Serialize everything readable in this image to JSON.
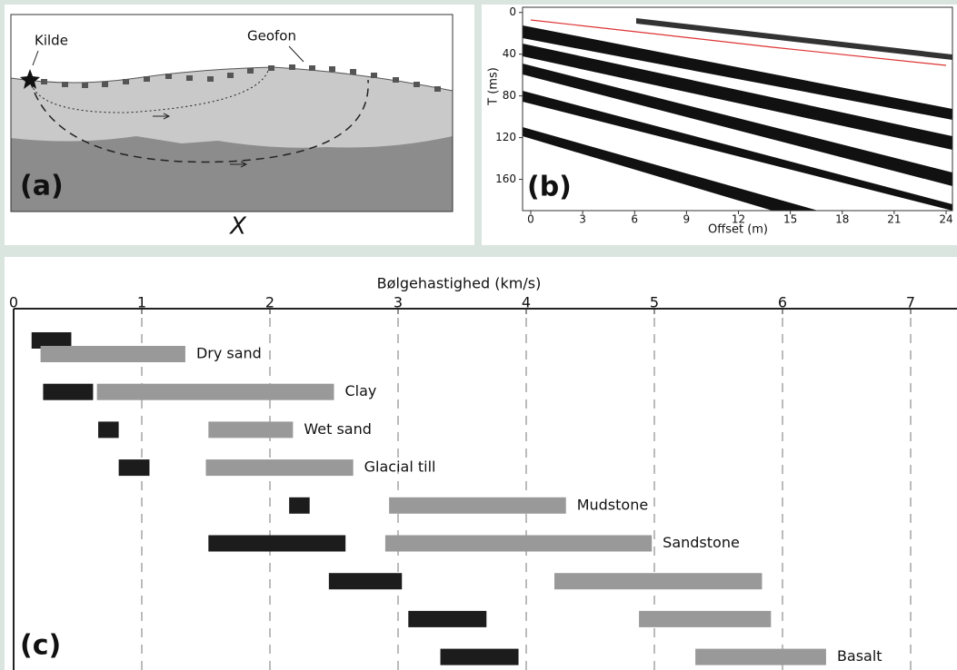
{
  "panel_a": {
    "label": "(a)",
    "source": "Kilde",
    "receiver": "Geofon",
    "axis": "X"
  },
  "chart_data": [
    {
      "type": "seismogram",
      "label": "(b)",
      "ylabel": "T (ms)",
      "xlabel": "Offset (m)",
      "xlim": [
        0,
        24
      ],
      "xticks": [
        0,
        3,
        6,
        9,
        12,
        15,
        18,
        21,
        24
      ],
      "ylim": [
        -5,
        190
      ],
      "yticks": [
        0,
        40,
        80,
        120,
        160
      ]
    },
    {
      "type": "range-bar",
      "label": "(c)",
      "title": "Bølgehastighed (km/s)",
      "xlim": [
        0,
        7.35
      ],
      "xticks": [
        0,
        1,
        2,
        3,
        4,
        5,
        6,
        7
      ],
      "grid": true,
      "categories": [
        "Dry sand",
        "Clay",
        "Wet sand",
        "Glacial till",
        "Mudstone",
        "Sandstone",
        null,
        null,
        "Basalt"
      ],
      "series": [
        {
          "color": "#1c1c1c",
          "values": [
            [
              0.14,
              0.45
            ],
            [
              0.23,
              0.62
            ],
            [
              0.66,
              0.82
            ],
            [
              0.82,
              1.06
            ],
            [
              2.15,
              2.31
            ],
            [
              1.52,
              2.59
            ],
            [
              2.46,
              3.03
            ],
            [
              3.08,
              3.69
            ],
            [
              3.33,
              3.94
            ]
          ]
        },
        {
          "color": "#999999",
          "values": [
            [
              0.21,
              1.34
            ],
            [
              0.65,
              2.5
            ],
            [
              1.52,
              2.18
            ],
            [
              1.5,
              2.65
            ],
            [
              2.93,
              4.31
            ],
            [
              2.9,
              4.98
            ],
            [
              4.22,
              5.84
            ],
            [
              4.88,
              5.91
            ],
            [
              5.32,
              6.34
            ]
          ]
        }
      ]
    }
  ]
}
